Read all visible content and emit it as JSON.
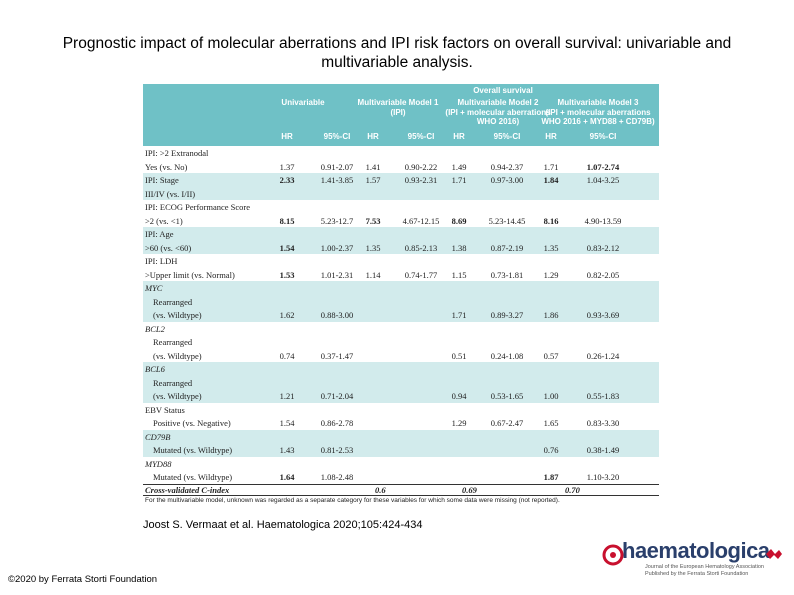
{
  "title": "Prognostic impact of molecular aberrations and IPI risk factors on overall survival: univariable and multivariable analysis.",
  "table": {
    "super_header": "Overall survival",
    "model_headers": [
      {
        "line1": "Univariable",
        "line2": ""
      },
      {
        "line1": "Multivariable Model 1",
        "line2": "(IPI)"
      },
      {
        "line1": "Multivariable Model 2",
        "line2": "(IPI + molecular aberrations",
        "line3": "WHO 2016)"
      },
      {
        "line1": "Multivariable Model 3",
        "line2": "(IPI + molecular aberrations",
        "line3": "WHO 2016 + MYD88 + CD79B)"
      }
    ],
    "col_headers": [
      "HR",
      "95%-CI",
      "HR",
      "95%-CI",
      "HR",
      "95%-CI",
      "HR",
      "95%-CI"
    ],
    "rows": [
      {
        "label": "IPI: >2 Extranodal",
        "cells": [
          "",
          "",
          "",
          "",
          "",
          "",
          "",
          ""
        ],
        "shade": false
      },
      {
        "label": "Yes (vs. No)",
        "cells": [
          "1.37",
          "0.91-2.07",
          "1.41",
          "0.90-2.22",
          "1.49",
          "0.94-2.37",
          "1.71",
          "1.07-2.74"
        ],
        "shade": false,
        "bold": [
          7
        ]
      },
      {
        "label": "IPI: Stage",
        "cells": [
          "2.33",
          "1.41-3.85",
          "1.57",
          "0.93-2.31",
          "1.71",
          "0.97-3.00",
          "1.84",
          "1.04-3.25"
        ],
        "shade": true,
        "bold": [
          0,
          6
        ]
      },
      {
        "label": "III/IV (vs. I/II)",
        "cells": [
          "",
          "",
          "",
          "",
          "",
          "",
          "",
          ""
        ],
        "shade": true
      },
      {
        "label": "IPI: ECOG Performance Score",
        "cells": [
          "",
          "",
          "",
          "",
          "",
          "",
          "",
          ""
        ],
        "shade": false
      },
      {
        "label": ">2 (vs. <1)",
        "cells": [
          "8.15",
          "5.23-12.7",
          "7.53",
          "4.67-12.15",
          "8.69",
          "5.23-14.45",
          "8.16",
          "4.90-13.59"
        ],
        "shade": false,
        "bold": [
          0,
          2,
          4,
          6
        ]
      },
      {
        "label": "IPI: Age",
        "cells": [
          "",
          "",
          "",
          "",
          "",
          "",
          "",
          ""
        ],
        "shade": true
      },
      {
        "label": ">60 (vs. <60)",
        "cells": [
          "1.54",
          "1.00-2.37",
          "1.35",
          "0.85-2.13",
          "1.38",
          "0.87-2.19",
          "1.35",
          "0.83-2.12"
        ],
        "shade": true,
        "bold": [
          0
        ]
      },
      {
        "label": "IPI: LDH",
        "cells": [
          "",
          "",
          "",
          "",
          "",
          "",
          "",
          ""
        ],
        "shade": false
      },
      {
        "label": ">Upper limit (vs. Normal)",
        "cells": [
          "1.53",
          "1.01-2.31",
          "1.14",
          "0.74-1.77",
          "1.15",
          "0.73-1.81",
          "1.29",
          "0.82-2.05"
        ],
        "shade": false,
        "bold": [
          0
        ]
      },
      {
        "label": "MYC",
        "cells": [
          "",
          "",
          "",
          "",
          "",
          "",
          "",
          ""
        ],
        "shade": true,
        "italic": true
      },
      {
        "label": "Rearranged",
        "cells": [
          "",
          "",
          "",
          "",
          "",
          "",
          "",
          ""
        ],
        "shade": true,
        "indent": true
      },
      {
        "label": "(vs. Wildtype)",
        "cells": [
          "1.62",
          "0.88-3.00",
          "",
          "",
          "1.71",
          "0.89-3.27",
          "1.86",
          "0.93-3.69"
        ],
        "shade": true,
        "indent": true
      },
      {
        "label": "BCL2",
        "cells": [
          "",
          "",
          "",
          "",
          "",
          "",
          "",
          ""
        ],
        "shade": false,
        "italic": true
      },
      {
        "label": "Rearranged",
        "cells": [
          "",
          "",
          "",
          "",
          "",
          "",
          "",
          ""
        ],
        "shade": false,
        "indent": true
      },
      {
        "label": "(vs. Wildtype)",
        "cells": [
          "0.74",
          "0.37-1.47",
          "",
          "",
          "0.51",
          "0.24-1.08",
          "0.57",
          "0.26-1.24"
        ],
        "shade": false,
        "indent": true
      },
      {
        "label": "BCL6",
        "cells": [
          "",
          "",
          "",
          "",
          "",
          "",
          "",
          ""
        ],
        "shade": true,
        "italic": true
      },
      {
        "label": "Rearranged",
        "cells": [
          "",
          "",
          "",
          "",
          "",
          "",
          "",
          ""
        ],
        "shade": true,
        "indent": true
      },
      {
        "label": "(vs. Wildtype)",
        "cells": [
          "1.21",
          "0.71-2.04",
          "",
          "",
          "0.94",
          "0.53-1.65",
          "1.00",
          "0.55-1.83"
        ],
        "shade": true,
        "indent": true
      },
      {
        "label": "EBV Status",
        "cells": [
          "",
          "",
          "",
          "",
          "",
          "",
          "",
          ""
        ],
        "shade": false
      },
      {
        "label": "Positive (vs. Negative)",
        "cells": [
          "1.54",
          "0.86-2.78",
          "",
          "",
          "1.29",
          "0.67-2.47",
          "1.65",
          "0.83-3.30"
        ],
        "shade": false,
        "indent": true
      },
      {
        "label": "CD79B",
        "cells": [
          "",
          "",
          "",
          "",
          "",
          "",
          "",
          ""
        ],
        "shade": true,
        "italic": true
      },
      {
        "label": "Mutated (vs. Wildtype)",
        "cells": [
          "1.43",
          "0.81-2.53",
          "",
          "",
          "",
          "",
          "0.76",
          "0.38-1.49"
        ],
        "shade": true,
        "indent": true
      },
      {
        "label": "MYD88",
        "cells": [
          "",
          "",
          "",
          "",
          "",
          "",
          "",
          ""
        ],
        "shade": false,
        "italic": true
      },
      {
        "label": "Mutated (vs. Wildtype)",
        "cells": [
          "1.64",
          "1.08-2.48",
          "",
          "",
          "",
          "",
          "1.87",
          "1.10-3.20"
        ],
        "shade": false,
        "indent": true,
        "bold": [
          0,
          6
        ]
      }
    ],
    "cv_label": "Cross-validated C-index",
    "cv_values": [
      "0.6",
      "0.69",
      "0.70"
    ],
    "footnote": "For the multivariable model, unknown was regarded as a separate category for these variables for which some data were missing (not reported)."
  },
  "citation": "Joost S. Vermaat et al. Haematologica 2020;105:424-434",
  "copyright": "©2020 by Ferrata Storti Foundation",
  "logo": {
    "wordmark": "haematologica",
    "line1": "Journal of the European Hematology Association",
    "line2": "Published by the Ferrata Storti Foundation"
  },
  "colors": {
    "header_teal": "#6fc1c6",
    "shade_teal": "#d2ebec",
    "logo_navy": "#2a3f6b",
    "logo_red": "#c8102e"
  }
}
